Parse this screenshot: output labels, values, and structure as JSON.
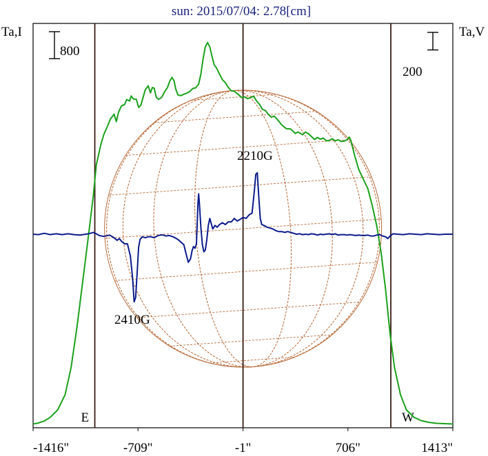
{
  "chart_data": {
    "type": "line",
    "title": "sun: 2015/07/04: 2.78[cm]",
    "left_axis_label": "Ta,I",
    "right_axis_label": "Ta,V",
    "x_ticks": [
      "-1416\"",
      "-709\"",
      "-1\"",
      "706\"",
      "1413\""
    ],
    "x_tick_values": [
      -1416,
      -709,
      -1,
      706,
      1413
    ],
    "xlim": [
      -1416,
      1413
    ],
    "limb_markers": [
      {
        "label": "E",
        "x": -1000
      },
      {
        "label": "W",
        "x": 995
      }
    ],
    "scale_bars": [
      {
        "axis": "left",
        "label": "800",
        "value": 800
      },
      {
        "axis": "right",
        "label": "200",
        "value": 200
      }
    ],
    "annotations": [
      {
        "text": "2210G",
        "x": 90,
        "series": "V"
      },
      {
        "text": "2410G",
        "x": -730,
        "series": "V"
      }
    ],
    "series": [
      {
        "name": "I",
        "color": "#1aa01a",
        "points": [
          [
            -1416,
            30
          ],
          [
            -1380,
            60
          ],
          [
            -1340,
            120
          ],
          [
            -1300,
            230
          ],
          [
            -1250,
            450
          ],
          [
            -1200,
            900
          ],
          [
            -1160,
            1700
          ],
          [
            -1120,
            2900
          ],
          [
            -1080,
            4300
          ],
          [
            -1040,
            5700
          ],
          [
            -1010,
            6800
          ],
          [
            -990,
            7700
          ],
          [
            -960,
            8300
          ],
          [
            -940,
            8600
          ],
          [
            -910,
            8900
          ],
          [
            -895,
            9070
          ],
          [
            -880,
            9150
          ],
          [
            -870,
            9210
          ],
          [
            -855,
            8990
          ],
          [
            -840,
            9270
          ],
          [
            -820,
            9460
          ],
          [
            -800,
            9490
          ],
          [
            -785,
            9640
          ],
          [
            -765,
            9600
          ],
          [
            -755,
            9750
          ],
          [
            -740,
            9660
          ],
          [
            -720,
            9650
          ],
          [
            -705,
            9410
          ],
          [
            -690,
            9470
          ],
          [
            -675,
            9700
          ],
          [
            -660,
            9930
          ],
          [
            -640,
            10050
          ],
          [
            -625,
            9840
          ],
          [
            -612,
            10000
          ],
          [
            -600,
            9980
          ],
          [
            -585,
            9700
          ],
          [
            -570,
            9650
          ],
          [
            -550,
            9700
          ],
          [
            -530,
            9870
          ],
          [
            -510,
            10000
          ],
          [
            -495,
            10190
          ],
          [
            -480,
            10300
          ],
          [
            -465,
            10190
          ],
          [
            -455,
            9960
          ],
          [
            -440,
            9780
          ],
          [
            -420,
            9760
          ],
          [
            -400,
            9800
          ],
          [
            -380,
            9830
          ],
          [
            -360,
            9880
          ],
          [
            -340,
            9970
          ],
          [
            -320,
            9990
          ],
          [
            -300,
            10100
          ],
          [
            -285,
            10400
          ],
          [
            -270,
            10860
          ],
          [
            -255,
            11210
          ],
          [
            -240,
            11330
          ],
          [
            -225,
            11200
          ],
          [
            -210,
            10920
          ],
          [
            -195,
            10670
          ],
          [
            -180,
            10580
          ],
          [
            -160,
            10400
          ],
          [
            -140,
            10230
          ],
          [
            -120,
            10140
          ],
          [
            -100,
            10000
          ],
          [
            -80,
            9900
          ],
          [
            -60,
            9890
          ],
          [
            -30,
            9780
          ],
          [
            -10,
            9700
          ],
          [
            10,
            9720
          ],
          [
            30,
            9670
          ],
          [
            50,
            9700
          ],
          [
            70,
            9740
          ],
          [
            90,
            9600
          ],
          [
            110,
            9500
          ],
          [
            130,
            9350
          ],
          [
            150,
            9320
          ],
          [
            170,
            9200
          ],
          [
            190,
            9120
          ],
          [
            210,
            9150
          ],
          [
            240,
            9000
          ],
          [
            260,
            8890
          ],
          [
            290,
            8780
          ],
          [
            320,
            8770
          ],
          [
            350,
            8640
          ],
          [
            370,
            8680
          ],
          [
            400,
            8600
          ],
          [
            420,
            8680
          ],
          [
            440,
            8630
          ],
          [
            460,
            8550
          ],
          [
            480,
            8460
          ],
          [
            500,
            8520
          ],
          [
            520,
            8470
          ],
          [
            540,
            8500
          ],
          [
            560,
            8420
          ],
          [
            580,
            8430
          ],
          [
            600,
            8480
          ],
          [
            620,
            8420
          ],
          [
            640,
            8450
          ],
          [
            660,
            8400
          ],
          [
            680,
            8410
          ],
          [
            700,
            8450
          ],
          [
            715,
            8530
          ],
          [
            725,
            8440
          ],
          [
            750,
            8000
          ],
          [
            780,
            7560
          ],
          [
            810,
            7280
          ],
          [
            840,
            7000
          ],
          [
            870,
            6500
          ],
          [
            900,
            5900
          ],
          [
            930,
            5100
          ],
          [
            960,
            4000
          ],
          [
            990,
            2700
          ],
          [
            1020,
            1700
          ],
          [
            1060,
            900
          ],
          [
            1100,
            450
          ],
          [
            1150,
            230
          ],
          [
            1200,
            130
          ],
          [
            1250,
            80
          ],
          [
            1300,
            50
          ],
          [
            1350,
            40
          ],
          [
            1413,
            30
          ]
        ]
      },
      {
        "name": "V",
        "color": "#0a1a8c",
        "points": [
          [
            -1416,
            0
          ],
          [
            -1380,
            -5
          ],
          [
            -1340,
            10
          ],
          [
            -1300,
            -5
          ],
          [
            -1260,
            5
          ],
          [
            -1220,
            -5
          ],
          [
            -1180,
            5
          ],
          [
            -1140,
            -5
          ],
          [
            -1100,
            -10
          ],
          [
            -1060,
            0
          ],
          [
            -1030,
            10
          ],
          [
            -1010,
            20
          ],
          [
            -990,
            5
          ],
          [
            -970,
            -15
          ],
          [
            -940,
            -25
          ],
          [
            -900,
            -10
          ],
          [
            -870,
            -40
          ],
          [
            -850,
            -70
          ],
          [
            -835,
            -50
          ],
          [
            -820,
            -80
          ],
          [
            -800,
            -110
          ],
          [
            -780,
            -110
          ],
          [
            -760,
            -250
          ],
          [
            -745,
            -500
          ],
          [
            -735,
            -770
          ],
          [
            -725,
            -720
          ],
          [
            -715,
            -450
          ],
          [
            -705,
            -150
          ],
          [
            -695,
            -60
          ],
          [
            -680,
            -30
          ],
          [
            -660,
            -40
          ],
          [
            -640,
            -30
          ],
          [
            -620,
            -30
          ],
          [
            -600,
            -40
          ],
          [
            -580,
            -20
          ],
          [
            -560,
            -10
          ],
          [
            -540,
            -10
          ],
          [
            -520,
            -20
          ],
          [
            -500,
            -15
          ],
          [
            -480,
            -25
          ],
          [
            -460,
            -40
          ],
          [
            -440,
            -60
          ],
          [
            -420,
            -90
          ],
          [
            -400,
            -120
          ],
          [
            -385,
            -220
          ],
          [
            -370,
            -320
          ],
          [
            -355,
            -280
          ],
          [
            -345,
            -190
          ],
          [
            -335,
            -140
          ],
          [
            -325,
            -160
          ],
          [
            -315,
            -110
          ],
          [
            -305,
            350
          ],
          [
            -300,
            460
          ],
          [
            -295,
            350
          ],
          [
            -285,
            70
          ],
          [
            -275,
            -120
          ],
          [
            -265,
            -200
          ],
          [
            -255,
            -180
          ],
          [
            -245,
            -60
          ],
          [
            -235,
            100
          ],
          [
            -225,
            180
          ],
          [
            -215,
            120
          ],
          [
            -205,
            60
          ],
          [
            -190,
            100
          ],
          [
            -175,
            80
          ],
          [
            -160,
            110
          ],
          [
            -140,
            130
          ],
          [
            -120,
            110
          ],
          [
            -100,
            140
          ],
          [
            -80,
            140
          ],
          [
            -60,
            180
          ],
          [
            -40,
            150
          ],
          [
            -20,
            170
          ],
          [
            0,
            190
          ],
          [
            20,
            180
          ],
          [
            40,
            220
          ],
          [
            60,
            240
          ],
          [
            75,
            490
          ],
          [
            85,
            680
          ],
          [
            95,
            700
          ],
          [
            105,
            430
          ],
          [
            115,
            180
          ],
          [
            125,
            110
          ],
          [
            140,
            100
          ],
          [
            160,
            80
          ],
          [
            180,
            70
          ],
          [
            200,
            60
          ],
          [
            220,
            40
          ],
          [
            240,
            30
          ],
          [
            260,
            30
          ],
          [
            280,
            20
          ],
          [
            300,
            30
          ],
          [
            320,
            20
          ],
          [
            340,
            10
          ],
          [
            360,
            0
          ],
          [
            380,
            5
          ],
          [
            400,
            -5
          ],
          [
            420,
            0
          ],
          [
            440,
            -5
          ],
          [
            460,
            5
          ],
          [
            480,
            0
          ],
          [
            500,
            -10
          ],
          [
            520,
            0
          ],
          [
            540,
            -5
          ],
          [
            560,
            0
          ],
          [
            580,
            5
          ],
          [
            600,
            -5
          ],
          [
            620,
            5
          ],
          [
            640,
            -10
          ],
          [
            660,
            -5
          ],
          [
            680,
            -5
          ],
          [
            700,
            -10
          ],
          [
            720,
            -5
          ],
          [
            740,
            -10
          ],
          [
            760,
            -15
          ],
          [
            780,
            -10
          ],
          [
            800,
            -15
          ],
          [
            820,
            -15
          ],
          [
            840,
            -10
          ],
          [
            860,
            -20
          ],
          [
            880,
            -20
          ],
          [
            900,
            -10
          ],
          [
            920,
            -5
          ],
          [
            940,
            -20
          ],
          [
            960,
            -30
          ],
          [
            975,
            -50
          ],
          [
            990,
            -20
          ],
          [
            1010,
            5
          ],
          [
            1040,
            0
          ],
          [
            1080,
            -5
          ],
          [
            1120,
            5
          ],
          [
            1160,
            0
          ],
          [
            1200,
            -5
          ],
          [
            1240,
            5
          ],
          [
            1280,
            0
          ],
          [
            1320,
            -5
          ],
          [
            1360,
            0
          ],
          [
            1413,
            0
          ]
        ]
      }
    ]
  }
}
